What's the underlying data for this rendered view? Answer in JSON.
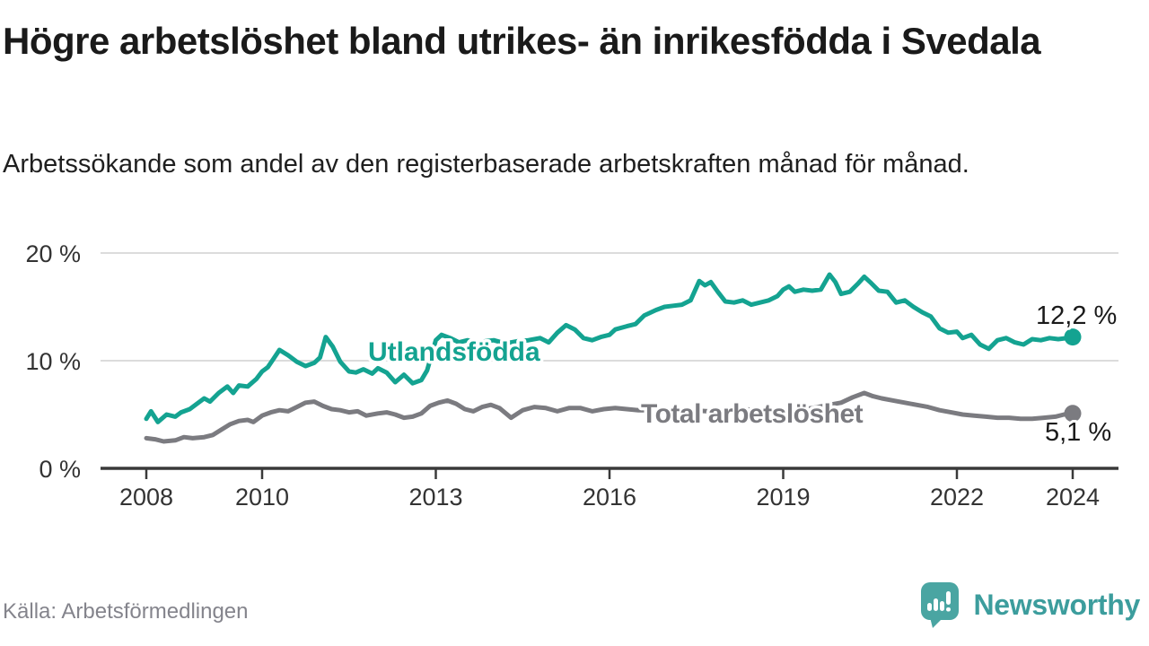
{
  "chart_data": {
    "type": "line",
    "title": "Högre arbetslöshet bland utrikes- än inrikesfödda i Svedala",
    "subtitle": "Arbetssökande som andel av den registerbaserade arbetskraften månad för månad.",
    "xlabel": "",
    "ylabel": "",
    "grid": "horizontal-only",
    "legend_position": "inline-labels-on-lines",
    "x_axis": {
      "ticks": [
        2008,
        2010,
        2013,
        2016,
        2019,
        2022,
        2024
      ],
      "range_years": [
        2007.2,
        2024.8
      ]
    },
    "y_axis": {
      "ticks": [
        0,
        10,
        20
      ],
      "tick_labels": [
        "0 %",
        "10 %",
        "20 %"
      ],
      "unit": "%",
      "range": [
        0,
        22
      ]
    },
    "series": [
      {
        "name": "Utlandsfödda",
        "color": "#14A391",
        "end_value": 12.2,
        "end_label": "12,2 %",
        "points": [
          [
            2008.0,
            4.6
          ],
          [
            2008.08,
            5.3
          ],
          [
            2008.2,
            4.3
          ],
          [
            2008.35,
            5.0
          ],
          [
            2008.5,
            4.8
          ],
          [
            2008.6,
            5.2
          ],
          [
            2008.75,
            5.5
          ],
          [
            2008.9,
            6.1
          ],
          [
            2009.0,
            6.5
          ],
          [
            2009.1,
            6.2
          ],
          [
            2009.25,
            7.0
          ],
          [
            2009.4,
            7.6
          ],
          [
            2009.5,
            7.0
          ],
          [
            2009.6,
            7.7
          ],
          [
            2009.75,
            7.6
          ],
          [
            2009.9,
            8.3
          ],
          [
            2010.0,
            9.0
          ],
          [
            2010.1,
            9.4
          ],
          [
            2010.2,
            10.2
          ],
          [
            2010.3,
            11.0
          ],
          [
            2010.45,
            10.5
          ],
          [
            2010.6,
            9.9
          ],
          [
            2010.75,
            9.5
          ],
          [
            2010.9,
            9.8
          ],
          [
            2011.0,
            10.3
          ],
          [
            2011.1,
            12.2
          ],
          [
            2011.22,
            11.3
          ],
          [
            2011.35,
            9.9
          ],
          [
            2011.5,
            9.0
          ],
          [
            2011.62,
            8.9
          ],
          [
            2011.75,
            9.2
          ],
          [
            2011.9,
            8.8
          ],
          [
            2012.0,
            9.3
          ],
          [
            2012.15,
            8.9
          ],
          [
            2012.3,
            8.0
          ],
          [
            2012.45,
            8.7
          ],
          [
            2012.6,
            7.9
          ],
          [
            2012.75,
            8.2
          ],
          [
            2012.85,
            9.1
          ],
          [
            2013.0,
            11.9
          ],
          [
            2013.1,
            12.4
          ],
          [
            2013.25,
            12.1
          ],
          [
            2013.4,
            11.7
          ],
          [
            2013.55,
            11.9
          ],
          [
            2013.7,
            11.6
          ],
          [
            2013.85,
            11.8
          ],
          [
            2014.0,
            11.9
          ],
          [
            2014.2,
            11.6
          ],
          [
            2014.4,
            11.8
          ],
          [
            2014.6,
            11.9
          ],
          [
            2014.8,
            12.1
          ],
          [
            2014.95,
            11.7
          ],
          [
            2015.1,
            12.6
          ],
          [
            2015.25,
            13.3
          ],
          [
            2015.4,
            12.9
          ],
          [
            2015.55,
            12.1
          ],
          [
            2015.7,
            11.9
          ],
          [
            2015.85,
            12.2
          ],
          [
            2016.0,
            12.4
          ],
          [
            2016.1,
            12.9
          ],
          [
            2016.3,
            13.2
          ],
          [
            2016.45,
            13.4
          ],
          [
            2016.6,
            14.2
          ],
          [
            2016.8,
            14.7
          ],
          [
            2016.95,
            15.0
          ],
          [
            2017.1,
            15.1
          ],
          [
            2017.25,
            15.2
          ],
          [
            2017.4,
            15.6
          ],
          [
            2017.55,
            17.4
          ],
          [
            2017.65,
            17.0
          ],
          [
            2017.75,
            17.3
          ],
          [
            2017.87,
            16.4
          ],
          [
            2018.0,
            15.5
          ],
          [
            2018.15,
            15.4
          ],
          [
            2018.3,
            15.6
          ],
          [
            2018.45,
            15.2
          ],
          [
            2018.6,
            15.4
          ],
          [
            2018.75,
            15.6
          ],
          [
            2018.9,
            16.0
          ],
          [
            2019.0,
            16.6
          ],
          [
            2019.1,
            16.9
          ],
          [
            2019.2,
            16.4
          ],
          [
            2019.35,
            16.6
          ],
          [
            2019.5,
            16.5
          ],
          [
            2019.65,
            16.6
          ],
          [
            2019.8,
            18.0
          ],
          [
            2019.9,
            17.3
          ],
          [
            2020.0,
            16.2
          ],
          [
            2020.15,
            16.4
          ],
          [
            2020.3,
            17.2
          ],
          [
            2020.4,
            17.8
          ],
          [
            2020.5,
            17.3
          ],
          [
            2020.65,
            16.5
          ],
          [
            2020.8,
            16.4
          ],
          [
            2020.95,
            15.4
          ],
          [
            2021.1,
            15.6
          ],
          [
            2021.25,
            15.0
          ],
          [
            2021.4,
            14.5
          ],
          [
            2021.55,
            14.1
          ],
          [
            2021.7,
            13.0
          ],
          [
            2021.85,
            12.6
          ],
          [
            2022.0,
            12.7
          ],
          [
            2022.1,
            12.1
          ],
          [
            2022.25,
            12.4
          ],
          [
            2022.4,
            11.5
          ],
          [
            2022.55,
            11.1
          ],
          [
            2022.7,
            11.9
          ],
          [
            2022.85,
            12.1
          ],
          [
            2023.0,
            11.7
          ],
          [
            2023.15,
            11.5
          ],
          [
            2023.3,
            12.0
          ],
          [
            2023.45,
            11.9
          ],
          [
            2023.6,
            12.1
          ],
          [
            2023.75,
            12.0
          ],
          [
            2023.9,
            12.1
          ],
          [
            2024.0,
            12.2
          ]
        ]
      },
      {
        "name": "Total arbetslöshet",
        "color": "#7B7B80",
        "end_value": 5.1,
        "end_label": "5,1 %",
        "points": [
          [
            2008.0,
            2.8
          ],
          [
            2008.15,
            2.7
          ],
          [
            2008.3,
            2.5
          ],
          [
            2008.5,
            2.6
          ],
          [
            2008.65,
            2.9
          ],
          [
            2008.8,
            2.8
          ],
          [
            2009.0,
            2.9
          ],
          [
            2009.15,
            3.1
          ],
          [
            2009.3,
            3.6
          ],
          [
            2009.45,
            4.1
          ],
          [
            2009.6,
            4.4
          ],
          [
            2009.75,
            4.5
          ],
          [
            2009.85,
            4.3
          ],
          [
            2010.0,
            4.9
          ],
          [
            2010.15,
            5.2
          ],
          [
            2010.3,
            5.4
          ],
          [
            2010.45,
            5.3
          ],
          [
            2010.6,
            5.7
          ],
          [
            2010.75,
            6.1
          ],
          [
            2010.9,
            6.2
          ],
          [
            2011.05,
            5.8
          ],
          [
            2011.2,
            5.5
          ],
          [
            2011.35,
            5.4
          ],
          [
            2011.5,
            5.2
          ],
          [
            2011.65,
            5.3
          ],
          [
            2011.8,
            4.9
          ],
          [
            2012.0,
            5.1
          ],
          [
            2012.15,
            5.2
          ],
          [
            2012.3,
            5.0
          ],
          [
            2012.45,
            4.7
          ],
          [
            2012.6,
            4.8
          ],
          [
            2012.75,
            5.1
          ],
          [
            2012.9,
            5.8
          ],
          [
            2013.05,
            6.1
          ],
          [
            2013.2,
            6.3
          ],
          [
            2013.35,
            6.0
          ],
          [
            2013.5,
            5.5
          ],
          [
            2013.65,
            5.3
          ],
          [
            2013.8,
            5.7
          ],
          [
            2013.95,
            5.9
          ],
          [
            2014.1,
            5.6
          ],
          [
            2014.3,
            4.7
          ],
          [
            2014.5,
            5.4
          ],
          [
            2014.7,
            5.7
          ],
          [
            2014.9,
            5.6
          ],
          [
            2015.1,
            5.3
          ],
          [
            2015.3,
            5.6
          ],
          [
            2015.5,
            5.6
          ],
          [
            2015.7,
            5.3
          ],
          [
            2015.9,
            5.5
          ],
          [
            2016.1,
            5.6
          ],
          [
            2016.3,
            5.5
          ],
          [
            2016.5,
            5.4
          ],
          [
            2016.7,
            5.4
          ],
          [
            2016.9,
            5.2
          ],
          [
            2017.1,
            5.3
          ],
          [
            2017.4,
            5.4
          ],
          [
            2017.7,
            5.3
          ],
          [
            2018.0,
            5.4
          ],
          [
            2018.3,
            5.5
          ],
          [
            2018.6,
            5.4
          ],
          [
            2018.9,
            5.5
          ],
          [
            2019.2,
            5.4
          ],
          [
            2019.5,
            5.6
          ],
          [
            2019.8,
            5.9
          ],
          [
            2020.0,
            6.1
          ],
          [
            2020.2,
            6.6
          ],
          [
            2020.4,
            7.0
          ],
          [
            2020.55,
            6.7
          ],
          [
            2020.7,
            6.5
          ],
          [
            2020.9,
            6.3
          ],
          [
            2021.1,
            6.1
          ],
          [
            2021.3,
            5.9
          ],
          [
            2021.5,
            5.7
          ],
          [
            2021.7,
            5.4
          ],
          [
            2021.9,
            5.2
          ],
          [
            2022.1,
            5.0
          ],
          [
            2022.3,
            4.9
          ],
          [
            2022.5,
            4.8
          ],
          [
            2022.7,
            4.7
          ],
          [
            2022.9,
            4.7
          ],
          [
            2023.1,
            4.6
          ],
          [
            2023.3,
            4.6
          ],
          [
            2023.5,
            4.7
          ],
          [
            2023.7,
            4.8
          ],
          [
            2023.85,
            5.0
          ],
          [
            2024.0,
            5.1
          ]
        ]
      }
    ]
  },
  "footer": {
    "source": "Källa: Arbetsförmedlingen",
    "brand": "Newsworthy"
  },
  "colors": {
    "series_foreign_born": "#14A391",
    "series_total": "#7B7B80",
    "gridline": "#DCDCDC",
    "axis": "#3A3A3A",
    "tick_text": "#333333",
    "title_text": "#1A1A1A",
    "value_label_text": "#1A1A1A",
    "source_text": "#84848C",
    "logo_background": "#4AA5A2",
    "brand_wordmark": "#3C9D9D"
  }
}
